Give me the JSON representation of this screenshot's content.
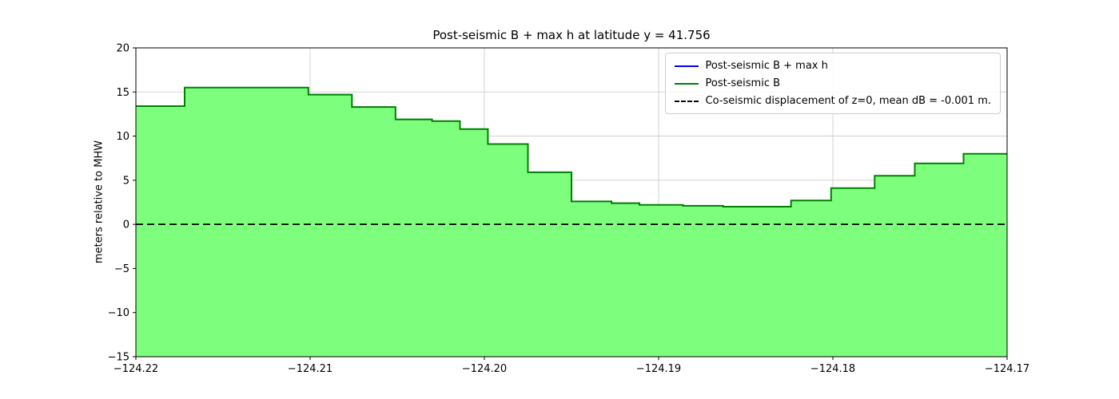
{
  "chart_data": {
    "type": "area",
    "subtype": "step-area-with-hline",
    "title": "Post-seismic B + max h at latitude y = 41.756",
    "xlabel": "",
    "ylabel": "meters relative to MHW",
    "xlim": [
      -124.22,
      -124.17
    ],
    "ylim": [
      -15,
      20
    ],
    "xticks": [
      -124.22,
      -124.21,
      -124.2,
      -124.19,
      -124.18,
      -124.17
    ],
    "xtick_labels": [
      "−124.22",
      "−124.21",
      "−124.20",
      "−124.19",
      "−124.18",
      "−124.17"
    ],
    "yticks": [
      -15,
      -10,
      -5,
      0,
      5,
      10,
      15,
      20
    ],
    "ytick_labels": [
      "−15",
      "−10",
      "−5",
      "0",
      "5",
      "10",
      "15",
      "20"
    ],
    "grid": true,
    "legend": {
      "position": "upper right",
      "entries": [
        {
          "label": "Post-seismic B + max h",
          "color": "#0000ff",
          "dash": "solid"
        },
        {
          "label": "Post-seismic B",
          "color": "#008000",
          "dash": "solid"
        },
        {
          "label": "Co-seismic displacement of z=0, mean dB = -0.001 m.",
          "color": "#000000",
          "dash": "dashed"
        }
      ]
    },
    "series": [
      {
        "name": "Post-seismic B",
        "render": "step-fill",
        "x_edges": [
          -124.22,
          -124.2172,
          -124.2101,
          -124.2076,
          -124.2051,
          -124.203,
          -124.2014,
          -124.1998,
          -124.1975,
          -124.195,
          -124.1927,
          -124.1911,
          -124.1886,
          -124.1863,
          -124.1824,
          -124.1801,
          -124.1776,
          -124.1753,
          -124.1725,
          -124.17
        ],
        "values": [
          13.4,
          15.5,
          14.7,
          13.3,
          11.9,
          11.7,
          10.8,
          9.1,
          5.9,
          2.6,
          2.4,
          2.2,
          2.1,
          2.0,
          2.7,
          4.1,
          5.5,
          6.9,
          8.0
        ],
        "line_color": "#008000",
        "fill_color": "#7dff7d"
      },
      {
        "name": "Post-seismic B + max h",
        "render": "step-line",
        "same_as": "Post-seismic B",
        "line_color": "#0000ff"
      },
      {
        "name": "Co-seismic displacement of z=0",
        "render": "hline",
        "y": 0,
        "line_color": "#000000",
        "dash": "dashed"
      }
    ],
    "colors": {
      "grid": "#c8c8c8",
      "axes": "#000000",
      "background": "#ffffff"
    }
  }
}
